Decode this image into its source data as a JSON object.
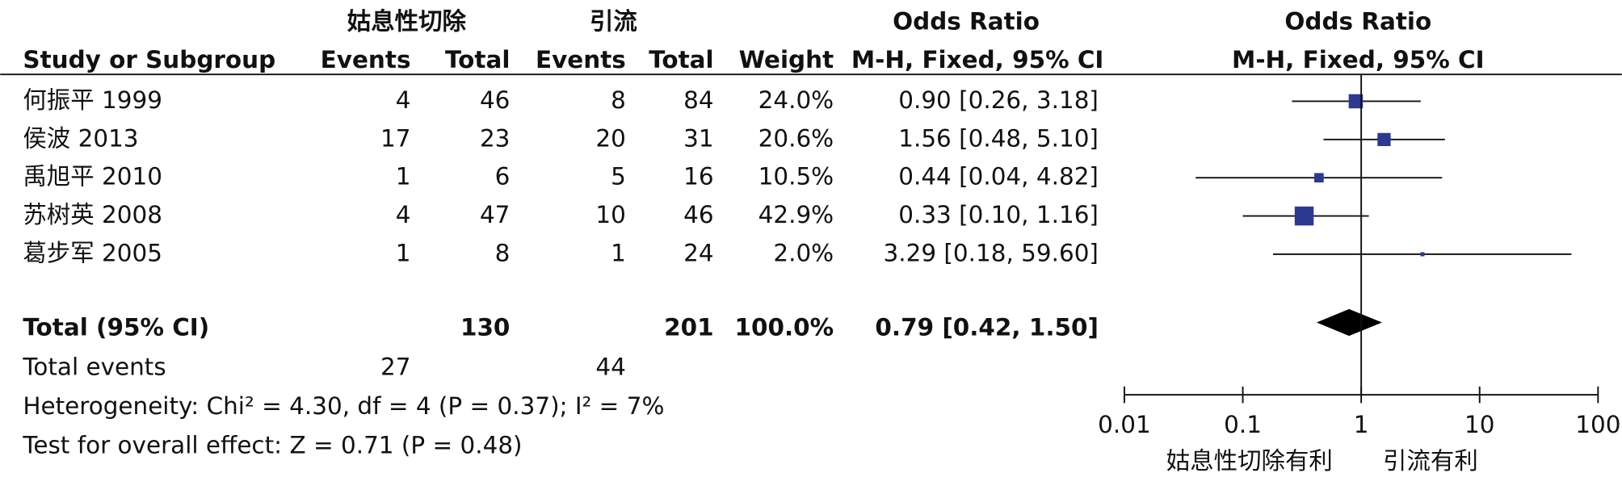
{
  "chart_data": {
    "type": "forest",
    "group_headers": [
      "姑息性切除",
      "引流"
    ],
    "column_headers": [
      "Study or Subgroup",
      "Events",
      "Total",
      "Events",
      "Total",
      "Weight",
      "M-H, Fixed, 95% CI"
    ],
    "table_effect_header": "Odds Ratio",
    "plot_headers": [
      "Odds Ratio",
      "M-H, Fixed, 95% CI"
    ],
    "studies": [
      {
        "name": "何振平 1999",
        "events1": 4,
        "total1": 46,
        "events2": 8,
        "total2": 84,
        "weight": 24.0,
        "weight_label": "24.0%",
        "or": 0.9,
        "ci_low": 0.26,
        "ci_high": 3.18,
        "or_label": "0.90 [0.26, 3.18]"
      },
      {
        "name": "侯波 2013",
        "events1": 17,
        "total1": 23,
        "events2": 20,
        "total2": 31,
        "weight": 20.6,
        "weight_label": "20.6%",
        "or": 1.56,
        "ci_low": 0.48,
        "ci_high": 5.1,
        "or_label": "1.56 [0.48, 5.10]"
      },
      {
        "name": "禹旭平 2010",
        "events1": 1,
        "total1": 6,
        "events2": 5,
        "total2": 16,
        "weight": 10.5,
        "weight_label": "10.5%",
        "or": 0.44,
        "ci_low": 0.04,
        "ci_high": 4.82,
        "or_label": "0.44 [0.04, 4.82]"
      },
      {
        "name": "苏树英 2008",
        "events1": 4,
        "total1": 47,
        "events2": 10,
        "total2": 46,
        "weight": 42.9,
        "weight_label": "42.9%",
        "or": 0.33,
        "ci_low": 0.1,
        "ci_high": 1.16,
        "or_label": "0.33 [0.10, 1.16]"
      },
      {
        "name": "葛步军 2005",
        "events1": 1,
        "total1": 8,
        "events2": 1,
        "total2": 24,
        "weight": 2.0,
        "weight_label": "2.0%",
        "or": 3.29,
        "ci_low": 0.18,
        "ci_high": 59.6,
        "or_label": "3.29 [0.18, 59.60]"
      }
    ],
    "total": {
      "name": "Total (95% CI)",
      "total1": 130,
      "total2": 201,
      "weight": 100.0,
      "weight_label": "100.0%",
      "or": 0.79,
      "ci_low": 0.42,
      "ci_high": 1.5,
      "or_label": "0.79 [0.42, 1.50]"
    },
    "total_events": {
      "name": "Total events",
      "events1": 27,
      "events2": 44
    },
    "heterogeneity": "Heterogeneity: Chi² = 4.30, df = 4 (P = 0.37); I² = 7%",
    "overall_effect": "Test for overall effect: Z = 0.71 (P = 0.48)",
    "log_scale": true,
    "xlim": [
      0.01,
      100
    ],
    "xticks": [
      0.01,
      0.1,
      1,
      10,
      100
    ],
    "null_line": 1,
    "favours": [
      "姑息性切除有利",
      "引流有利"
    ],
    "color": "#2b3990"
  }
}
